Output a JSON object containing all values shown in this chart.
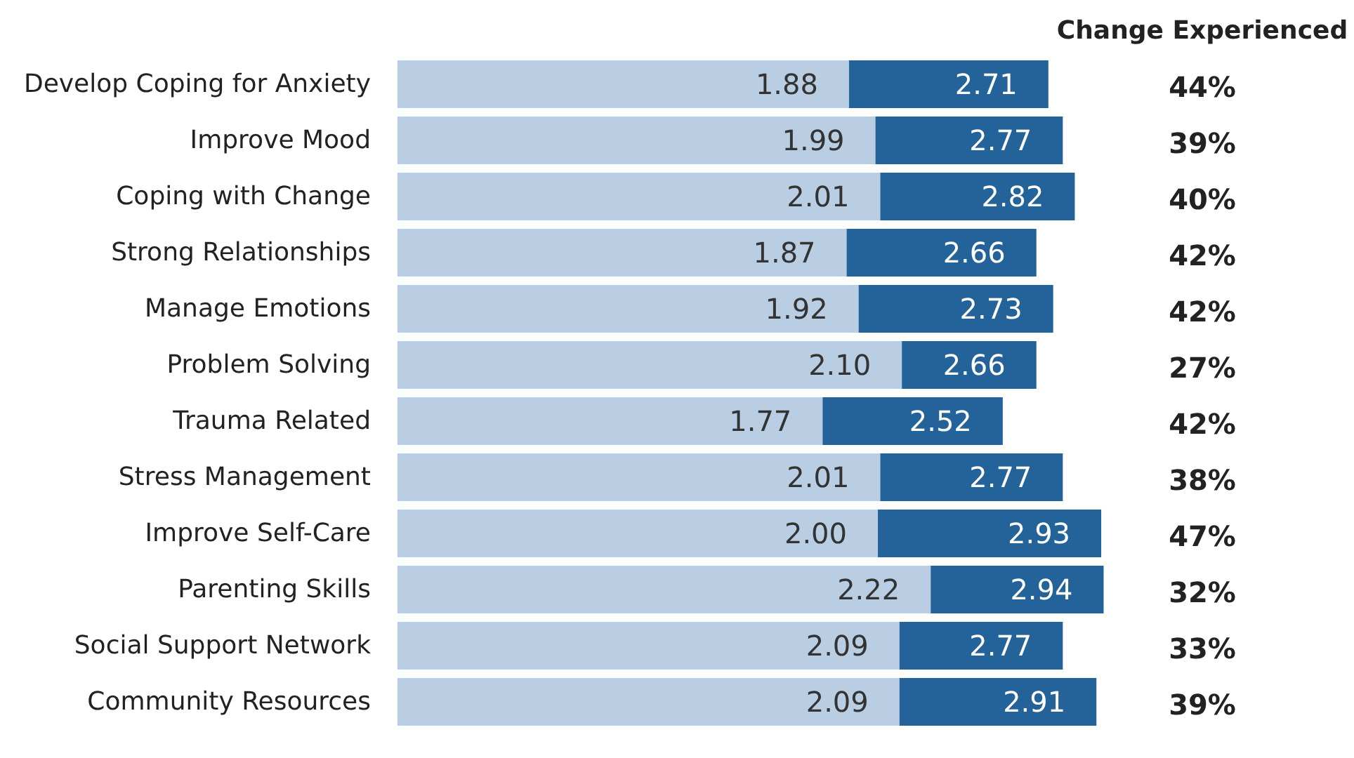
{
  "chart_data": {
    "type": "bar",
    "orientation": "horizontal",
    "stacked": true,
    "categories": [
      "Develop Coping for Anxiety",
      "Improve Mood",
      "Coping with Change",
      "Strong Relationships",
      "Manage Emotions",
      "Problem Solving",
      "Trauma Related",
      "Stress Management",
      "Improve Self-Care",
      "Parenting Skills",
      "Social Support Network",
      "Community Resources"
    ],
    "series": [
      {
        "color": "#b9cde3",
        "values": [
          1.88,
          1.99,
          2.01,
          1.87,
          1.92,
          2.1,
          1.77,
          2.01,
          2.0,
          2.22,
          2.09,
          2.09
        ],
        "value_labels": [
          "1.88",
          "1.99",
          "2.01",
          "1.87",
          "1.92",
          "2.10",
          "1.77",
          "2.01",
          "2.00",
          "2.22",
          "2.09",
          "2.09"
        ]
      },
      {
        "color": "#246399",
        "values": [
          0.83,
          0.78,
          0.81,
          0.79,
          0.81,
          0.56,
          0.75,
          0.76,
          0.93,
          0.72,
          0.68,
          0.82
        ]
      }
    ],
    "totals": [
      "2.71",
      "2.77",
      "2.82",
      "2.66",
      "2.73",
      "2.66",
      "2.52",
      "2.77",
      "2.93",
      "2.94",
      "2.77",
      "2.91"
    ],
    "annotations": [
      "Change Experienced",
      "44%",
      "39%",
      "40%",
      "42%",
      "42%",
      "27%",
      "42%",
      "38%",
      "47%",
      "32%",
      "33%",
      "39%"
    ]
  }
}
